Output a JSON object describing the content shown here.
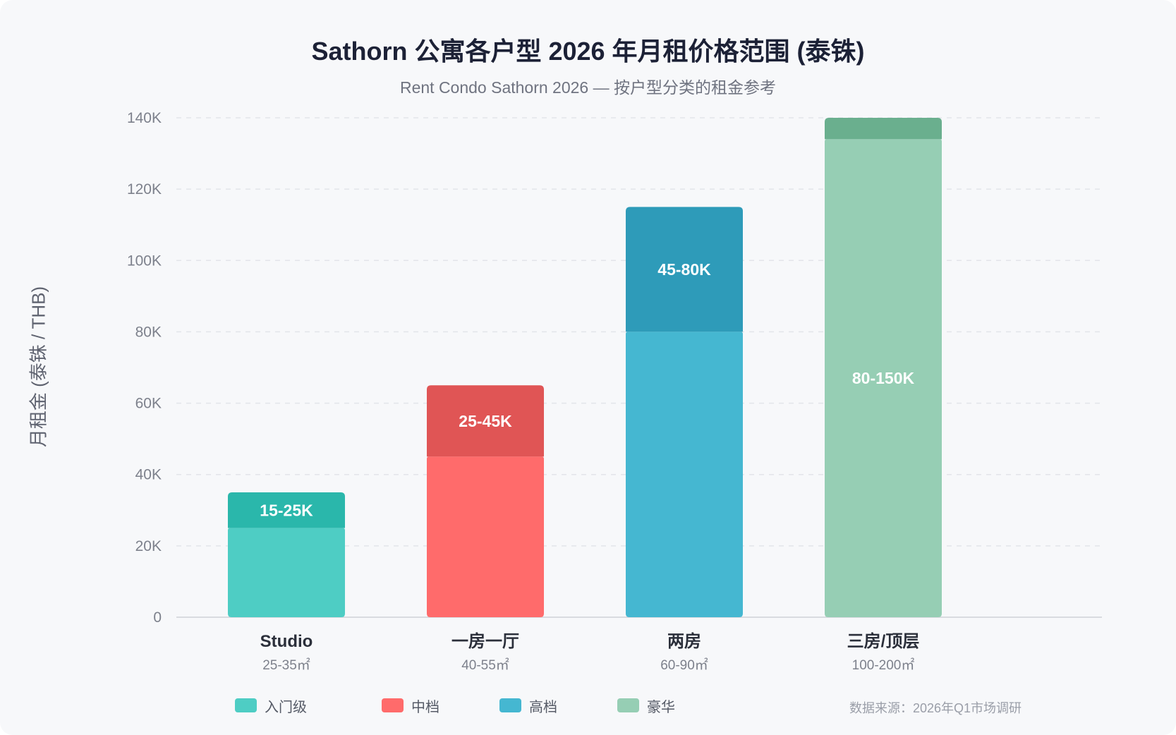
{
  "title": "Sathorn 公寓各户型 2026 年月租价格范围 (泰铢)",
  "subtitle": "Rent Condo Sathorn 2026 — 按户型分类的租金参考",
  "source": "数据来源：2026年Q1市场调研",
  "chart_data": {
    "type": "bar",
    "stacked": true,
    "ylabel": "月租金 (泰铢 / THB)",
    "ylim": [
      0,
      140000
    ],
    "yticks": [
      0,
      20000,
      40000,
      60000,
      80000,
      100000,
      120000,
      140000
    ],
    "ytick_labels": [
      "0",
      "20K",
      "40K",
      "60K",
      "80K",
      "100K",
      "120K",
      "140K"
    ],
    "grid": true,
    "categories": [
      {
        "label": "Studio",
        "sublabel": "25-35㎡",
        "base": 25000,
        "range_top": 35000,
        "range_label": "15-25K",
        "base_color": "#4ecdc4",
        "range_color": "#2ab7ab"
      },
      {
        "label": "一房一厅",
        "sublabel": "40-55㎡",
        "base": 45000,
        "range_top": 65000,
        "range_label": "25-45K",
        "base_color": "#ff6b6b",
        "range_color": "#e05555"
      },
      {
        "label": "两房",
        "sublabel": "60-90㎡",
        "base": 80000,
        "range_top": 115000,
        "range_label": "45-80K",
        "base_color": "#45b7d1",
        "range_color": "#2e9bb9"
      },
      {
        "label": "三房/顶层",
        "sublabel": "100-200㎡",
        "base": 134000,
        "range_top": 140000,
        "range_label": "80-150K",
        "base_color": "#96ceb4",
        "range_color": "#6aaf8e"
      }
    ],
    "legend": [
      {
        "label": "入门级",
        "color": "#4ecdc4"
      },
      {
        "label": "中档",
        "color": "#ff6b6b"
      },
      {
        "label": "高档",
        "color": "#45b7d1"
      },
      {
        "label": "豪华",
        "color": "#96ceb4"
      }
    ]
  }
}
